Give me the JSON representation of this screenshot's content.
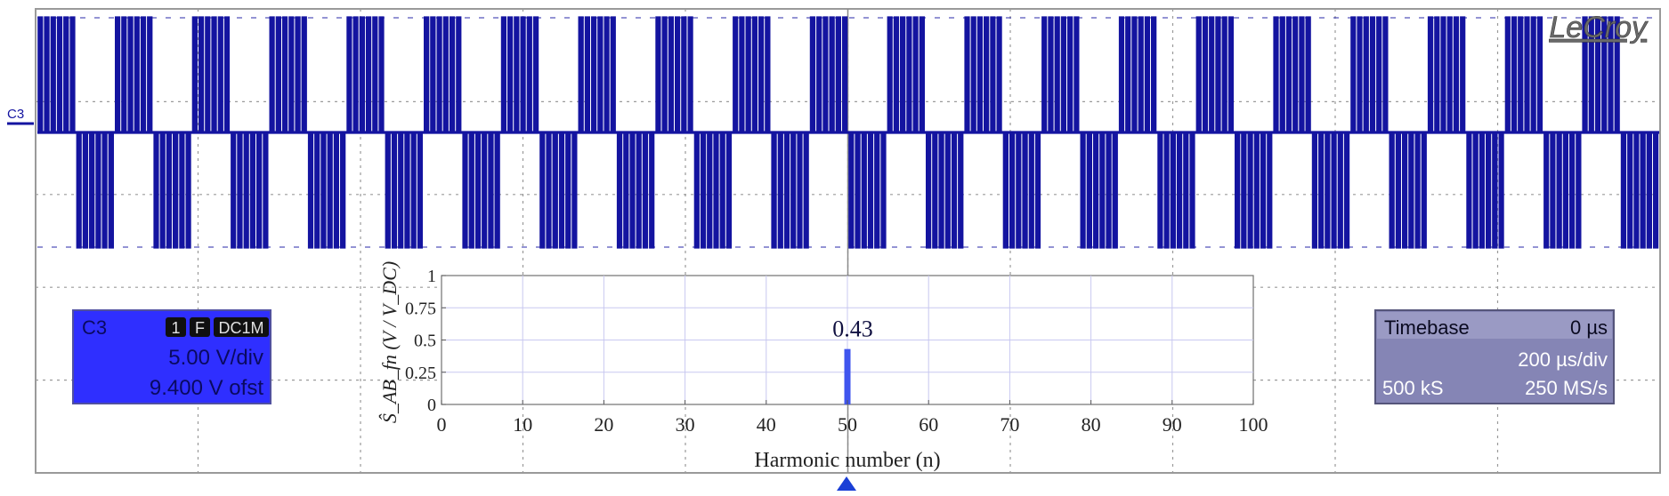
{
  "scope": {
    "brand": "LeCroy",
    "channel_marker": "C3",
    "trace_color": "#1414a0",
    "waveform": {
      "pulses_per_block": 6,
      "blocks": 21
    }
  },
  "channel_box": {
    "name": "C3",
    "badges": [
      "1",
      "F",
      "DC1M"
    ],
    "vdiv": "5.00 V/div",
    "offset": "9.400 V ofst",
    "color": "#2f2fff"
  },
  "timebase_box": {
    "title": "Timebase",
    "delay": "0 µs",
    "tdiv": "200 µs/div",
    "samples": "500 kS",
    "rate": "250 MS/s",
    "color": "#8585b5"
  },
  "chart_data": {
    "type": "bar",
    "x": [
      50
    ],
    "values": [
      0.43
    ],
    "data_labels": [
      "0.43"
    ],
    "xlim": [
      0,
      100
    ],
    "ylim": [
      0,
      1
    ],
    "xticks": [
      0,
      10,
      20,
      30,
      40,
      50,
      60,
      70,
      80,
      90,
      100
    ],
    "yticks": [
      "0",
      "0.25",
      "0.5",
      "0.75",
      "1"
    ],
    "xlabel": "Harmonic number (n)",
    "ylabel": "Ŝ_AB_fn (V / V_DC)",
    "grid": true,
    "bar_color": "#3f55ee"
  }
}
